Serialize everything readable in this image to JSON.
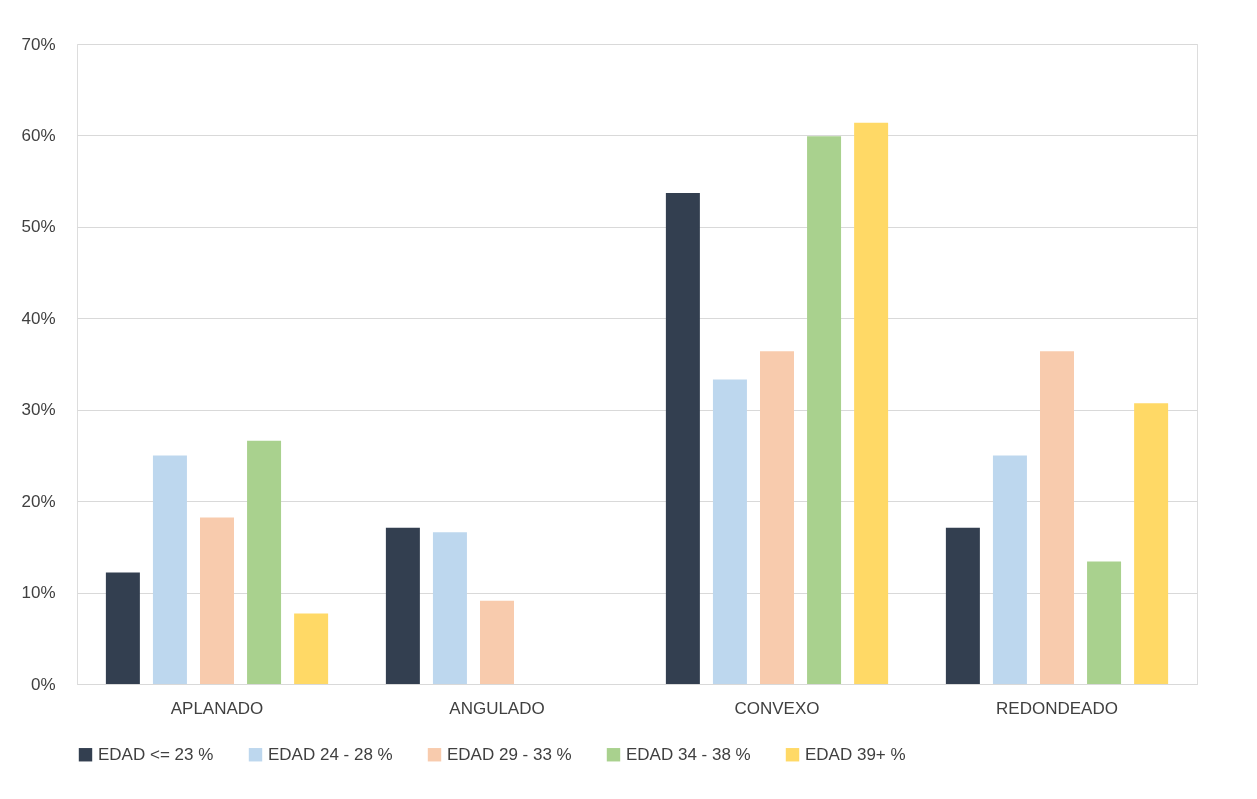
{
  "chart_data": {
    "type": "bar",
    "categories": [
      "APLANADO",
      "ANGULADO",
      "CONVEXO",
      "REDONDEADO"
    ],
    "series": [
      {
        "name": "EDAD  <= 23 %",
        "color": "#333f50",
        "values": [
          12.2,
          17.1,
          53.7,
          17.1
        ]
      },
      {
        "name": "EDAD  24 - 28 %",
        "color": "#bdd7ee",
        "values": [
          25.0,
          16.6,
          33.3,
          25.0
        ]
      },
      {
        "name": "EDAD  29 - 33 %",
        "color": "#f8cbad",
        "values": [
          18.2,
          9.1,
          36.4,
          36.4
        ]
      },
      {
        "name": "EDAD  34 - 38 %",
        "color": "#a9d18e",
        "values": [
          26.6,
          0,
          59.9,
          13.4
        ]
      },
      {
        "name": "EDAD  39+ %",
        "color": "#ffd966",
        "values": [
          7.7,
          0,
          61.4,
          30.7
        ]
      }
    ],
    "ylim": [
      0,
      70
    ],
    "yticks": [
      {
        "value": 0,
        "label": "0%"
      },
      {
        "value": 10,
        "label": "10%"
      },
      {
        "value": 20,
        "label": "20%"
      },
      {
        "value": 30,
        "label": "30%"
      },
      {
        "value": 40,
        "label": "40%"
      },
      {
        "value": 50,
        "label": "50%"
      },
      {
        "value": 60,
        "label": "60%"
      },
      {
        "value": 70,
        "label": "70%"
      }
    ],
    "grid": "y",
    "legend": "bottom"
  }
}
